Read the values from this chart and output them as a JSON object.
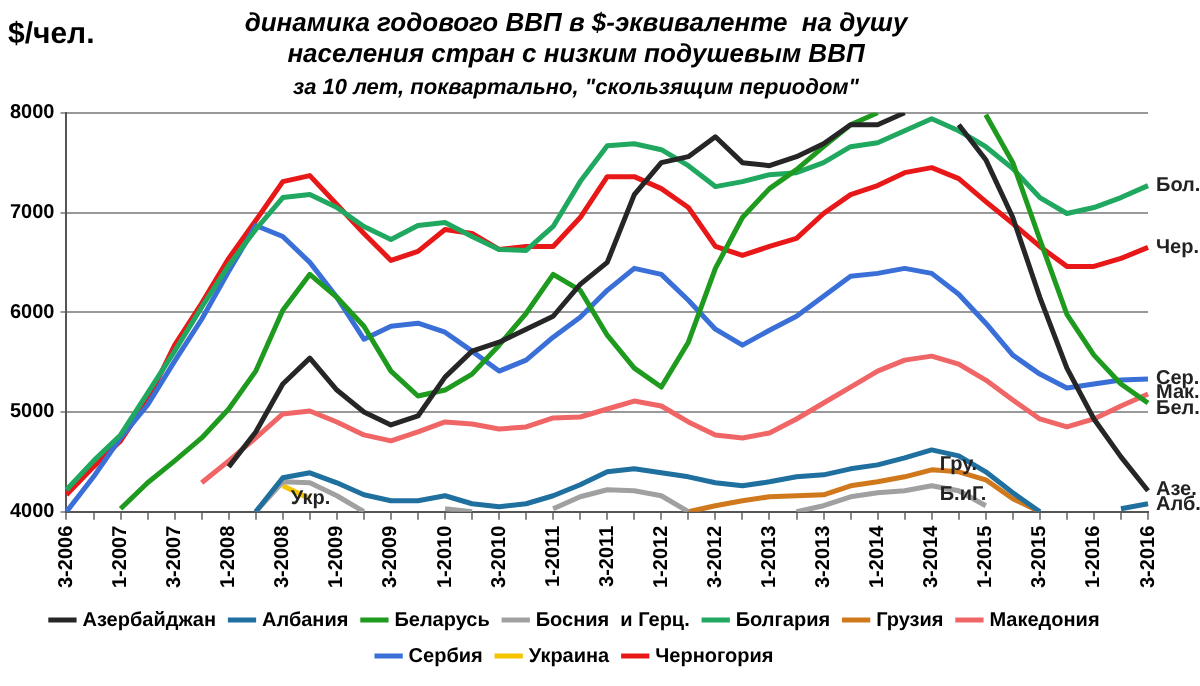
{
  "chart_data": {
    "type": "line",
    "title": "динамика годового ВВП в $-эквиваленте  на душу населения стран с низким подушевым ВВП",
    "subtitle": "за 10 лет, поквартально, \"скользящим периодом\"",
    "ylabel": "$/чел.",
    "categories": [
      "3-2006",
      null,
      "1-2007",
      null,
      "3-2007",
      null,
      "1-2008",
      null,
      "3-2008",
      null,
      "1-2009",
      null,
      "3-2009",
      null,
      "1-2010",
      null,
      "3-2010",
      null,
      "1-2011",
      null,
      "3-2011",
      null,
      "1-2012",
      null,
      "3-2012",
      null,
      "1-2013",
      null,
      "3-2013",
      null,
      "1-2014",
      null,
      "3-2014",
      null,
      "1-2015",
      null,
      "3-2015",
      null,
      "1-2016",
      null,
      "3-2016"
    ],
    "series": [
      {
        "name": "Азербайджан",
        "color": "#262626",
        "values": [
          null,
          null,
          null,
          null,
          null,
          null,
          4450,
          4800,
          5280,
          5540,
          5220,
          5000,
          4870,
          4960,
          5350,
          5610,
          5700,
          5830,
          5960,
          6280,
          6500,
          7180,
          7500,
          7560,
          7760,
          7500,
          7470,
          7560,
          7690,
          7880,
          7880,
          8000,
          null,
          7880,
          7530,
          6950,
          6150,
          5440,
          4930,
          4550,
          4210
        ]
      },
      {
        "name": "Албания",
        "color": "#1f6f9f",
        "values": [
          null,
          null,
          null,
          null,
          null,
          null,
          null,
          4000,
          4340,
          4390,
          4290,
          4170,
          4110,
          4110,
          4160,
          4080,
          4050,
          4080,
          4160,
          4270,
          4400,
          4430,
          4390,
          4350,
          4290,
          4260,
          4300,
          4350,
          4370,
          4430,
          4470,
          4540,
          4620,
          4560,
          4400,
          4190,
          4000,
          null,
          null,
          4030,
          4080
        ]
      },
      {
        "name": "Беларусь",
        "color": "#1e9a1e",
        "values": [
          null,
          null,
          4030,
          4290,
          4510,
          4740,
          5030,
          5410,
          6020,
          6380,
          6150,
          5860,
          5410,
          5160,
          5220,
          5380,
          5670,
          5990,
          6380,
          6220,
          5770,
          5440,
          5250,
          5700,
          6440,
          6950,
          7240,
          7430,
          7660,
          7880,
          8000,
          null,
          null,
          null,
          7980,
          7500,
          6730,
          5980,
          5570,
          5280,
          5090
        ]
      },
      {
        "name": "Босния  и Герц.",
        "color": "#a0a0a0",
        "values": [
          null,
          null,
          null,
          null,
          null,
          null,
          null,
          4000,
          4300,
          4290,
          4160,
          4000,
          null,
          null,
          4030,
          4000,
          null,
          null,
          4030,
          4150,
          4220,
          4210,
          4160,
          4000,
          null,
          null,
          null,
          4000,
          4060,
          4150,
          4190,
          4210,
          4260,
          4210,
          4060,
          null,
          null,
          null,
          null,
          null,
          null
        ]
      },
      {
        "name": "Болгария",
        "color": "#20a860",
        "values": [
          4220,
          4510,
          4770,
          5190,
          5610,
          6050,
          6470,
          6830,
          7150,
          7180,
          7050,
          6860,
          6730,
          6870,
          6900,
          6760,
          6630,
          6620,
          6860,
          7310,
          7670,
          7690,
          7630,
          7470,
          7260,
          7310,
          7380,
          7400,
          7500,
          7660,
          7700,
          7820,
          7940,
          7820,
          7660,
          7440,
          7150,
          6990,
          7050,
          7150,
          7270
        ]
      },
      {
        "name": "Грузия",
        "color": "#d0781c",
        "values": [
          null,
          null,
          null,
          null,
          null,
          null,
          null,
          null,
          null,
          null,
          null,
          null,
          null,
          null,
          null,
          null,
          null,
          null,
          null,
          null,
          null,
          null,
          null,
          4000,
          4060,
          4110,
          4150,
          4160,
          4170,
          4260,
          4300,
          4350,
          4420,
          4400,
          4320,
          4130,
          4000,
          null,
          null,
          null,
          null
        ]
      },
      {
        "name": "Македония",
        "color": "#f06666",
        "values": [
          null,
          null,
          null,
          null,
          null,
          4290,
          4510,
          4740,
          4980,
          5010,
          4900,
          4770,
          4710,
          4800,
          4900,
          4880,
          4830,
          4850,
          4940,
          4950,
          5030,
          5110,
          5060,
          4900,
          4770,
          4740,
          4790,
          4930,
          5090,
          5250,
          5410,
          5520,
          5560,
          5480,
          5320,
          5120,
          4930,
          4850,
          4930,
          5060,
          5180
        ]
      },
      {
        "name": "Сербия",
        "color": "#3a6fd8",
        "values": [
          4000,
          4350,
          4740,
          5070,
          5510,
          5930,
          6410,
          6870,
          6760,
          6500,
          6150,
          5730,
          5860,
          5890,
          5800,
          5610,
          5410,
          5520,
          5750,
          5950,
          6220,
          6440,
          6380,
          6120,
          5830,
          5670,
          5820,
          5960,
          6160,
          6360,
          6390,
          6440,
          6390,
          6180,
          5890,
          5570,
          5380,
          5240,
          5280,
          5320,
          5330
        ]
      },
      {
        "name": "Украина",
        "color": "#f5c400",
        "values": [
          null,
          null,
          null,
          null,
          null,
          null,
          null,
          null,
          4260,
          4130,
          null,
          null,
          null,
          null,
          null,
          null,
          null,
          null,
          null,
          null,
          null,
          null,
          null,
          null,
          null,
          null,
          null,
          null,
          null,
          null,
          null,
          null,
          null,
          null,
          null,
          null,
          null,
          null,
          null,
          null,
          null
        ]
      },
      {
        "name": "Черногория",
        "color": "#e81818",
        "values": [
          4170,
          4450,
          4710,
          5120,
          5670,
          6090,
          6540,
          6920,
          7310,
          7370,
          7080,
          6790,
          6520,
          6610,
          6830,
          6790,
          6630,
          6660,
          6660,
          6950,
          7360,
          7360,
          7240,
          7050,
          6660,
          6570,
          6660,
          6740,
          6990,
          7180,
          7270,
          7400,
          7450,
          7340,
          7110,
          6890,
          6660,
          6460,
          6460,
          6540,
          6650
        ]
      }
    ],
    "ylim": [
      4000,
      8000
    ],
    "yticks": [
      4000,
      5000,
      6000,
      7000,
      8000
    ],
    "grid": "y",
    "legend": "bottom",
    "marker": "none",
    "line_style": "solid",
    "annotations": [
      {
        "text": "Бол.",
        "x": "3-2016",
        "y": 7270
      },
      {
        "text": "Чер.",
        "x": "3-2016",
        "y": 6650
      },
      {
        "text": "Сер.",
        "x": "3-2016",
        "y": 5340
      },
      {
        "text": "Мак.",
        "x": "3-2016",
        "y": 5200
      },
      {
        "text": "Бел.",
        "x": "3-2016",
        "y": 5040
      },
      {
        "text": "Азе.",
        "x": "3-2016",
        "y": 4220
      },
      {
        "text": "Алб.",
        "x": "3-2016",
        "y": 4070
      },
      {
        "text": "Гру.",
        "x": "3-2014",
        "y": 4470
      },
      {
        "text": "Б.иГ.",
        "x": "3-2014",
        "y": 4170
      },
      {
        "text": "Укр.",
        "x": "3-2008",
        "y": 4130
      }
    ]
  }
}
